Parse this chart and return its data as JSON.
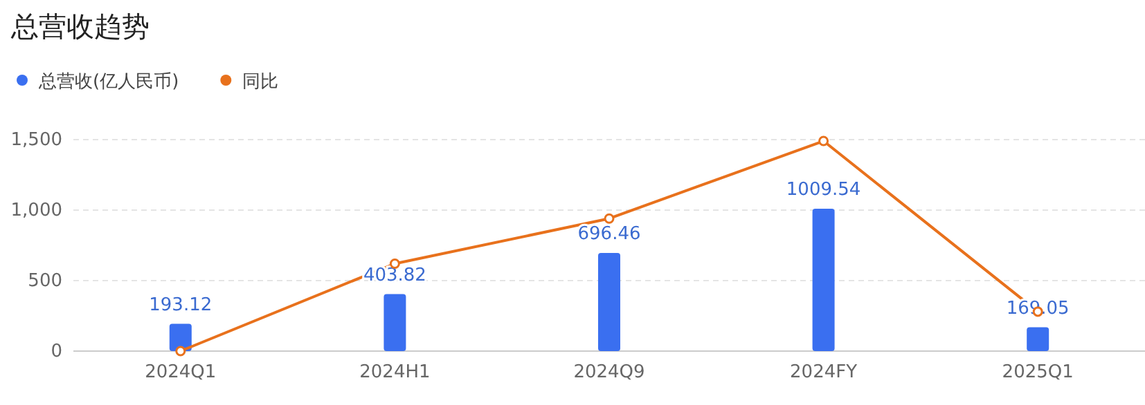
{
  "chart_data": {
    "type": "bar",
    "title": "总营收趋势",
    "categories": [
      "2024Q1",
      "2024H1",
      "2024Q9",
      "2024FY",
      "2025Q1"
    ],
    "series": [
      {
        "name": "总营收(亿人民币)",
        "color": "#3a6ff0",
        "values": [
          193.12,
          403.82,
          696.46,
          1009.54,
          169.05
        ],
        "value_labels": [
          "193.12",
          "403.82",
          "696.46",
          "1009.54",
          "169.05"
        ]
      },
      {
        "name": "同比",
        "type": "line",
        "color": "#e8711c",
        "values": [
          0,
          620,
          940,
          1490,
          280
        ],
        "marker": "circle"
      }
    ],
    "ylim": [
      0,
      1500
    ],
    "yticks": [
      0,
      500,
      {
        "value": 1000,
        "label": "1,000"
      },
      {
        "value": 1500,
        "label": "1,500"
      }
    ],
    "grid": "y",
    "legend": "top left"
  }
}
